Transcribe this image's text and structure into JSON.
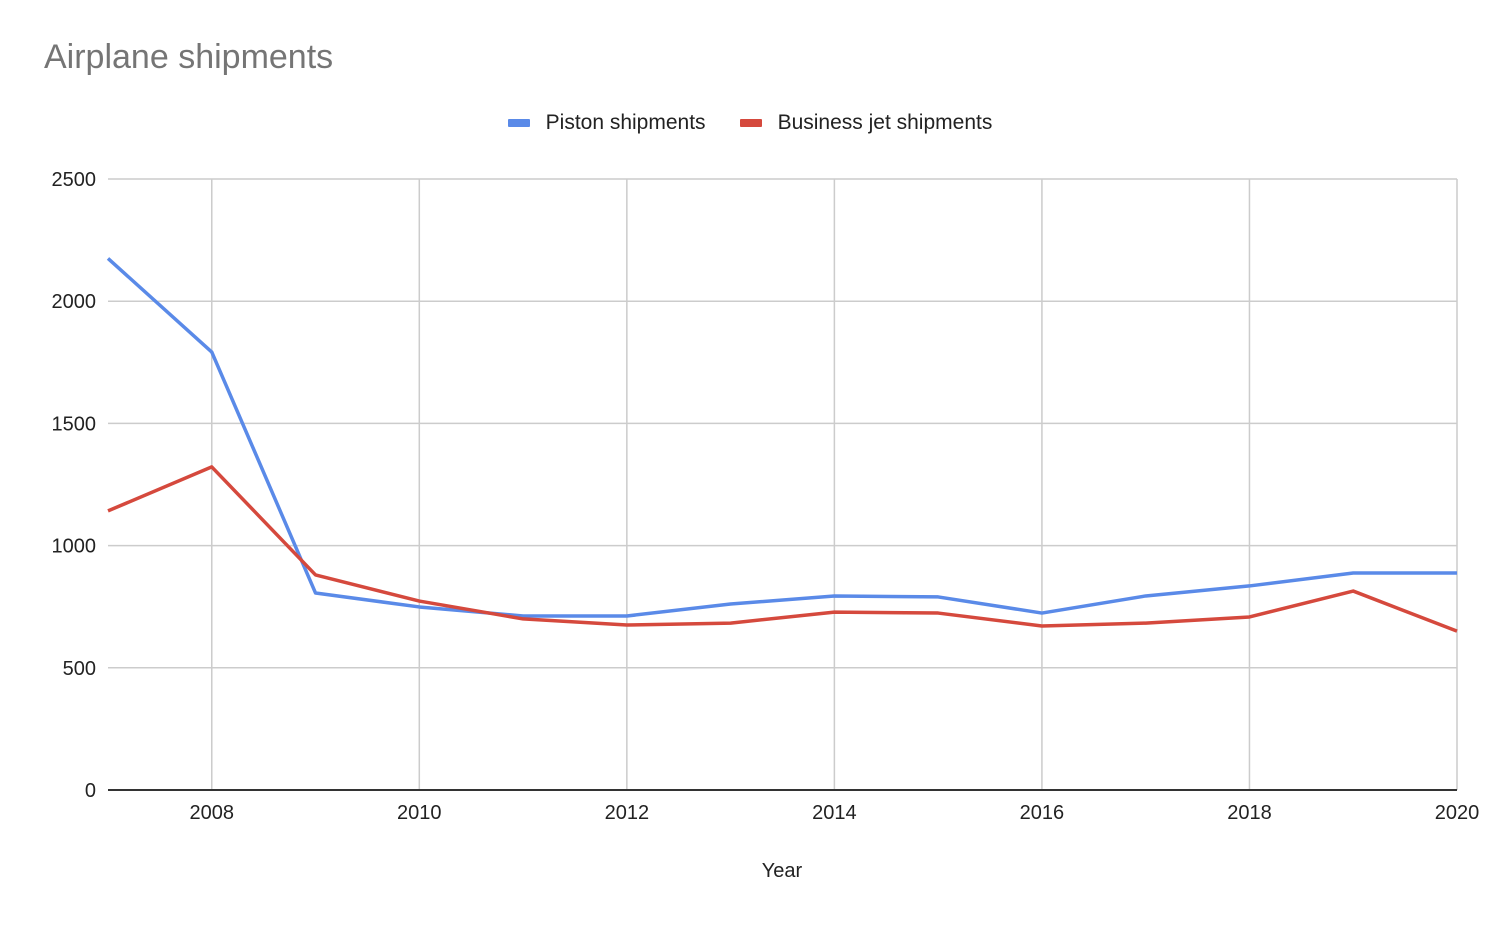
{
  "chart_data": {
    "type": "line",
    "title": "Airplane shipments",
    "xlabel": "Year",
    "ylabel": "",
    "x": [
      2007,
      2008,
      2009,
      2010,
      2011,
      2012,
      2013,
      2014,
      2015,
      2016,
      2017,
      2018,
      2019,
      2020
    ],
    "series": [
      {
        "name": "Piston shipments",
        "color": "#5a8ae8",
        "values": [
          2175,
          1792,
          806,
          749,
          712,
          712,
          761,
          794,
          790,
          724,
          794,
          835,
          888,
          888
        ]
      },
      {
        "name": "Business jet shipments",
        "color": "#d5493d",
        "values": [
          1142,
          1322,
          880,
          773,
          700,
          675,
          683,
          728,
          724,
          671,
          683,
          708,
          814,
          650
        ]
      }
    ],
    "ylim": [
      0,
      2500
    ],
    "xlim": [
      2007,
      2020
    ],
    "yticks": [
      0,
      500,
      1000,
      1500,
      2000,
      2500
    ],
    "xticks": [
      2008,
      2010,
      2012,
      2014,
      2016,
      2018,
      2020
    ],
    "grid": true,
    "legend_position": "top"
  },
  "title": "Airplane shipments",
  "legend": [
    {
      "label": "Piston shipments",
      "color": "#5a8ae8"
    },
    {
      "label": "Business jet shipments",
      "color": "#d5493d"
    }
  ],
  "axes": {
    "x_title": "Year",
    "y_tick_labels": [
      "0",
      "500",
      "1000",
      "1500",
      "2000",
      "2500"
    ],
    "x_tick_labels": [
      "2008",
      "2010",
      "2012",
      "2014",
      "2016",
      "2018",
      "2020"
    ]
  }
}
